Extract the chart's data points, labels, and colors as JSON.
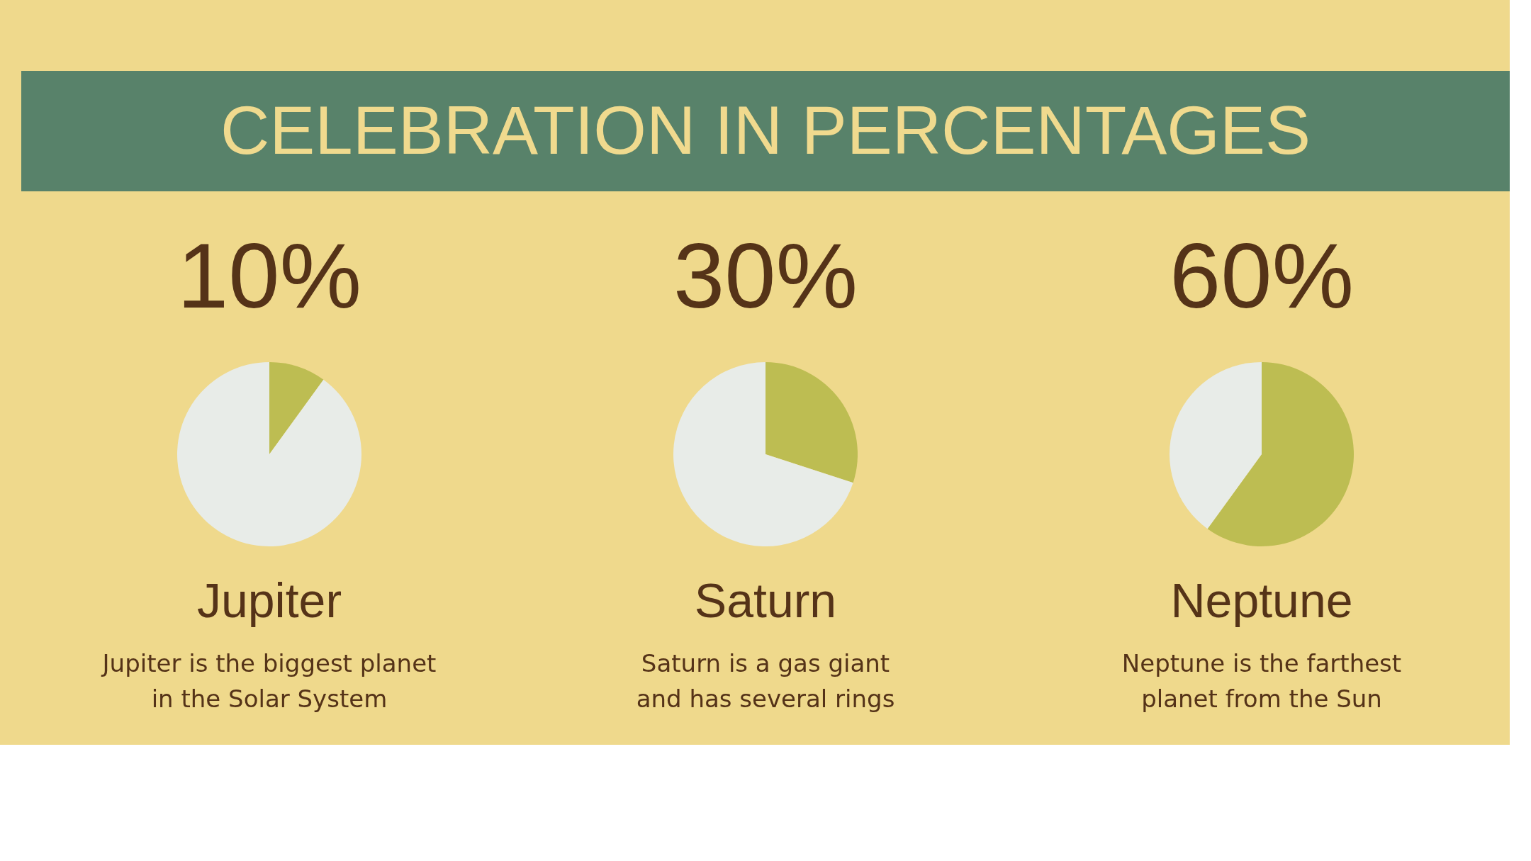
{
  "chart_data": [
    {
      "type": "other",
      "title": "CELEBRATION IN PERCENTAGES"
    },
    {
      "type": "pie",
      "title": "10%",
      "subtitle": "Jupiter",
      "categories": [
        null,
        null
      ],
      "values": [
        10,
        90
      ],
      "colors": [
        "#bdbd52",
        "#e8ece8"
      ],
      "annotations": [
        "Jupiter is the biggest planet in the Solar System"
      ]
    },
    {
      "type": "pie",
      "title": "30%",
      "subtitle": "Saturn",
      "categories": [
        null,
        null
      ],
      "values": [
        30,
        70
      ],
      "colors": [
        "#bdbd52",
        "#e8ece8"
      ],
      "annotations": [
        "Saturn is a gas giant and has several rings"
      ]
    },
    {
      "type": "pie",
      "title": "60%",
      "subtitle": "Neptune",
      "categories": [
        null,
        null
      ],
      "values": [
        60,
        40
      ],
      "colors": [
        "#bdbd52",
        "#e8ece8"
      ],
      "annotations": [
        "Neptune is the farthest planet from the Sun"
      ]
    }
  ]
}
